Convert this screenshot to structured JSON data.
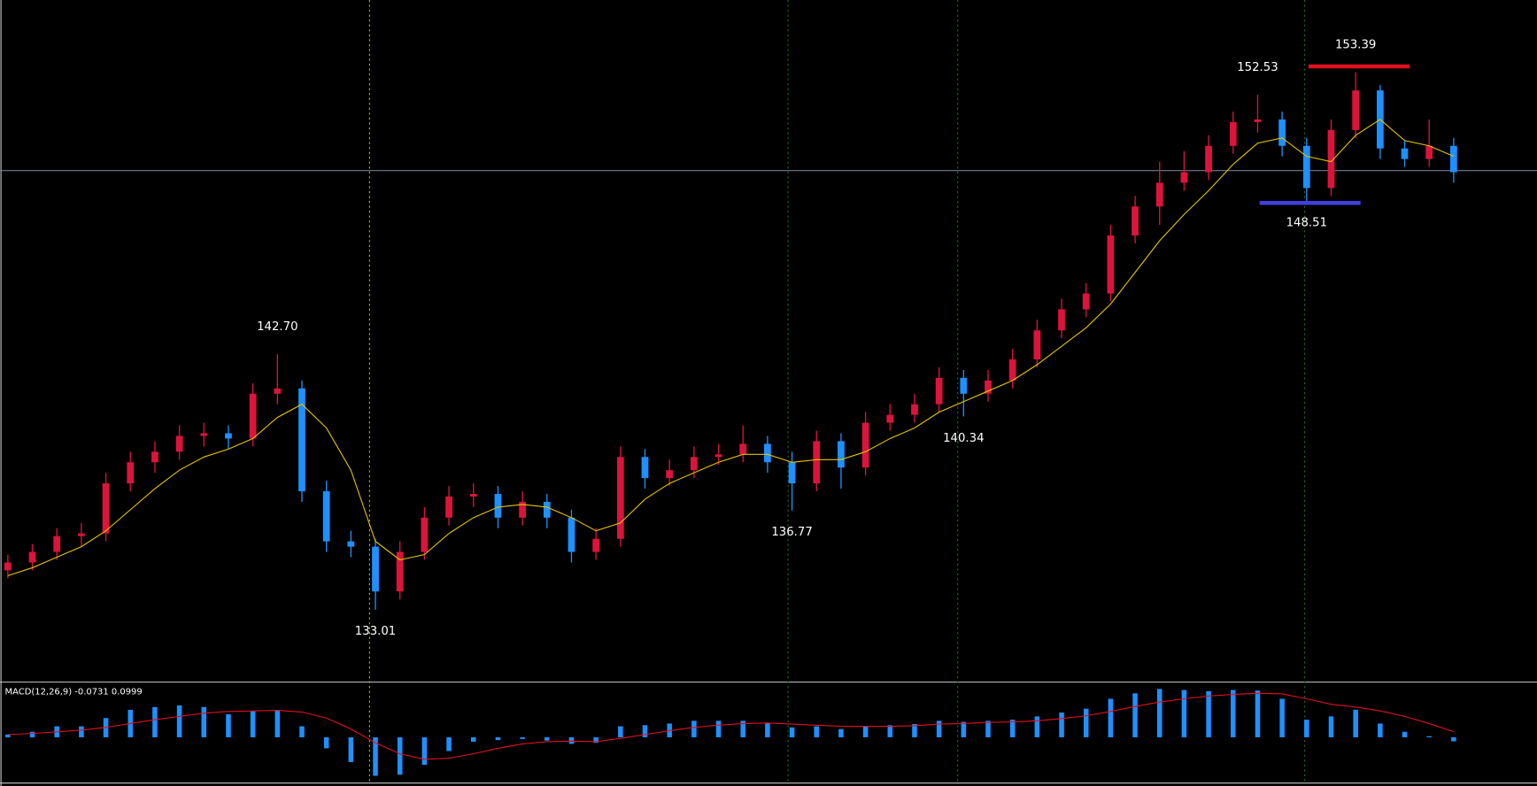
{
  "chart_data": {
    "type": "candlestick",
    "up_color": "#dc143c",
    "down_color": "#1e90ff",
    "ma_color": "#e6c200",
    "ylim": [
      130.3,
      156.13
    ],
    "hline": 149.66,
    "open": [
      134.5,
      134.8,
      135.2,
      135.8,
      135.9,
      137.8,
      138.6,
      139.0,
      139.6,
      139.7,
      139.5,
      141.2,
      141.4,
      137.5,
      135.6,
      135.4,
      133.7,
      135.2,
      136.5,
      137.3,
      137.4,
      136.5,
      137.1,
      136.5,
      135.2,
      135.7,
      138.8,
      138.0,
      138.3,
      138.8,
      138.9,
      139.3,
      138.6,
      137.8,
      139.4,
      138.4,
      140.1,
      140.4,
      140.8,
      141.8,
      141.2,
      141.7,
      142.5,
      143.6,
      144.4,
      145.0,
      147.2,
      148.3,
      149.2,
      149.6,
      150.6,
      151.5,
      151.6,
      150.6,
      149.0,
      151.2,
      152.7,
      150.5,
      150.1,
      150.6
    ],
    "high": [
      135.1,
      135.5,
      136.1,
      136.3,
      138.2,
      139.0,
      139.4,
      140.0,
      140.1,
      140.0,
      141.6,
      142.7,
      141.7,
      137.9,
      136.0,
      135.7,
      135.6,
      136.9,
      137.7,
      137.8,
      137.7,
      137.5,
      137.4,
      136.8,
      136.1,
      139.2,
      139.1,
      138.7,
      139.2,
      139.3,
      140.0,
      139.6,
      139.0,
      139.8,
      139.7,
      140.5,
      140.8,
      141.2,
      142.2,
      142.1,
      142.1,
      142.9,
      144.0,
      144.8,
      145.4,
      147.6,
      148.7,
      150.0,
      150.4,
      151.0,
      151.9,
      152.53,
      151.9,
      150.9,
      151.6,
      153.39,
      152.9,
      150.8,
      151.6,
      150.9
    ],
    "low": [
      134.2,
      134.5,
      134.9,
      135.4,
      135.6,
      137.5,
      138.2,
      138.7,
      139.2,
      139.1,
      139.2,
      140.8,
      137.1,
      135.2,
      135.0,
      133.01,
      133.4,
      134.9,
      136.2,
      136.9,
      136.1,
      136.2,
      136.1,
      134.8,
      134.9,
      135.4,
      137.6,
      137.7,
      138.0,
      138.5,
      138.6,
      138.2,
      136.77,
      137.5,
      137.6,
      138.1,
      139.8,
      140.1,
      140.5,
      140.34,
      140.9,
      141.4,
      142.2,
      143.3,
      144.1,
      144.7,
      146.9,
      147.6,
      148.9,
      149.3,
      150.3,
      151.1,
      150.2,
      148.51,
      148.7,
      150.9,
      150.1,
      149.8,
      149.8,
      149.2
    ],
    "close": [
      134.8,
      135.2,
      135.8,
      135.9,
      137.8,
      138.6,
      139.0,
      139.6,
      139.7,
      139.5,
      141.2,
      141.4,
      137.5,
      135.6,
      135.4,
      133.7,
      135.2,
      136.5,
      137.3,
      137.4,
      136.5,
      137.1,
      136.5,
      135.2,
      135.7,
      138.8,
      138.0,
      138.3,
      138.8,
      138.9,
      139.3,
      138.6,
      137.8,
      139.4,
      138.4,
      140.1,
      140.4,
      140.8,
      141.8,
      141.2,
      141.7,
      142.5,
      143.6,
      144.4,
      145.0,
      147.2,
      148.3,
      149.2,
      149.6,
      150.6,
      151.5,
      151.6,
      150.6,
      149.0,
      151.2,
      152.7,
      150.5,
      150.1,
      150.6,
      149.6
    ],
    "ma": [
      134.3,
      134.6,
      135.0,
      135.4,
      136.0,
      136.8,
      137.6,
      138.3,
      138.8,
      139.1,
      139.5,
      140.3,
      140.8,
      139.9,
      138.3,
      135.6,
      134.9,
      135.1,
      135.9,
      136.5,
      136.9,
      137.0,
      136.9,
      136.5,
      136.0,
      136.3,
      137.2,
      137.8,
      138.2,
      138.6,
      138.9,
      138.9,
      138.6,
      138.7,
      138.7,
      139.0,
      139.5,
      139.9,
      140.5,
      140.9,
      141.3,
      141.7,
      142.3,
      143.0,
      143.7,
      144.6,
      145.8,
      147.0,
      148.0,
      148.9,
      149.9,
      150.7,
      150.9,
      150.2,
      150.0,
      151.0,
      151.6,
      150.8,
      150.6,
      150.2
    ],
    "annotations": [
      {
        "value": 142.7,
        "label": "142.70",
        "kind": "high"
      },
      {
        "value": 133.01,
        "label": "133.01",
        "kind": "low"
      },
      {
        "value": 136.77,
        "label": "136.77",
        "kind": "low"
      },
      {
        "value": 140.34,
        "label": "140.34",
        "kind": "low"
      },
      {
        "value": 152.53,
        "label": "152.53",
        "kind": "high"
      },
      {
        "value": 153.39,
        "label": "153.39",
        "kind": "high",
        "line_color": "#e0101e"
      },
      {
        "value": 148.51,
        "label": "148.51",
        "kind": "low",
        "line_color": "#4040e0"
      }
    ],
    "macd": {
      "label": "MACD(12,26,9) -0.0731 0.0999",
      "ylim": [
        -0.85,
        0.95
      ],
      "hist_color": "#1e90ff",
      "signal_color": "#e0101e",
      "hist": [
        0.05,
        0.1,
        0.2,
        0.2,
        0.35,
        0.5,
        0.55,
        0.58,
        0.55,
        0.42,
        0.48,
        0.5,
        0.2,
        -0.2,
        -0.45,
        -0.7,
        -0.68,
        -0.5,
        -0.25,
        -0.08,
        -0.05,
        -0.03,
        -0.06,
        -0.12,
        -0.1,
        0.2,
        0.22,
        0.25,
        0.3,
        0.3,
        0.3,
        0.25,
        0.18,
        0.2,
        0.15,
        0.2,
        0.22,
        0.24,
        0.3,
        0.28,
        0.3,
        0.32,
        0.38,
        0.45,
        0.52,
        0.7,
        0.8,
        0.88,
        0.86,
        0.84,
        0.86,
        0.85,
        0.7,
        0.32,
        0.38,
        0.5,
        0.25,
        0.1,
        0.02,
        -0.0731
      ],
      "signal": [
        0.05,
        0.07,
        0.1,
        0.13,
        0.18,
        0.25,
        0.32,
        0.38,
        0.44,
        0.47,
        0.48,
        0.49,
        0.46,
        0.35,
        0.15,
        -0.1,
        -0.3,
        -0.4,
        -0.38,
        -0.3,
        -0.2,
        -0.12,
        -0.08,
        -0.07,
        -0.08,
        -0.02,
        0.05,
        0.12,
        0.18,
        0.22,
        0.25,
        0.26,
        0.24,
        0.22,
        0.2,
        0.2,
        0.2,
        0.21,
        0.24,
        0.25,
        0.27,
        0.28,
        0.3,
        0.34,
        0.39,
        0.47,
        0.56,
        0.64,
        0.7,
        0.75,
        0.78,
        0.8,
        0.79,
        0.7,
        0.6,
        0.55,
        0.48,
        0.38,
        0.25,
        0.0999
      ]
    }
  }
}
